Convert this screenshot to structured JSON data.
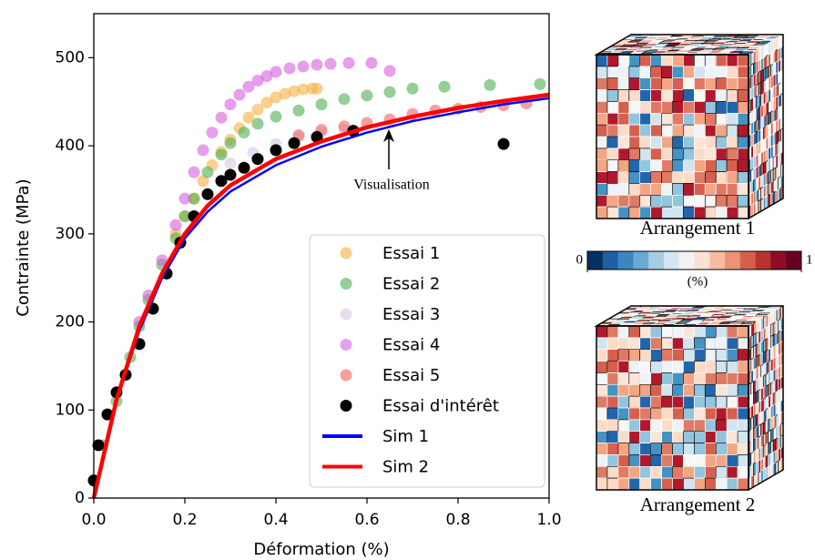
{
  "chart_data": {
    "type": "scatter",
    "xlabel": "Déformation (%)",
    "ylabel": "Contrainte (MPa)",
    "xlim": [
      0,
      1
    ],
    "ylim": [
      0,
      550
    ],
    "xticks": [
      {
        "value": 0,
        "label": "0.0"
      },
      {
        "value": 0.2,
        "label": "0.2"
      },
      {
        "value": 0.4,
        "label": "0.4"
      },
      {
        "value": 0.6,
        "label": "0.6"
      },
      {
        "value": 0.8,
        "label": "0.8"
      },
      {
        "value": 1,
        "label": "1.0"
      }
    ],
    "yticks": [
      0,
      100,
      200,
      300,
      400,
      500
    ],
    "annotation": "Visualisation",
    "legend": "lower right",
    "series": [
      {
        "name": "Essai 1",
        "type": "scatter",
        "color": "#f5b041",
        "x": [
          0.18,
          0.2,
          0.22,
          0.24,
          0.26,
          0.28,
          0.3,
          0.32,
          0.34,
          0.36,
          0.38,
          0.4,
          0.42,
          0.44,
          0.46,
          0.48,
          0.49
        ],
        "values": [
          300,
          320,
          340,
          360,
          378,
          393,
          407,
          420,
          432,
          441,
          449,
          455,
          459,
          462,
          464,
          465,
          465
        ]
      },
      {
        "name": "Essai 2",
        "type": "scatter",
        "color": "#4caf50",
        "x": [
          0.02,
          0.05,
          0.08,
          0.1,
          0.12,
          0.15,
          0.18,
          0.2,
          0.22,
          0.25,
          0.28,
          0.3,
          0.33,
          0.36,
          0.4,
          0.45,
          0.5,
          0.55,
          0.6,
          0.65,
          0.7,
          0.77,
          0.87,
          0.98
        ],
        "values": [
          60,
          110,
          160,
          195,
          225,
          265,
          295,
          320,
          340,
          370,
          390,
          403,
          415,
          425,
          433,
          440,
          447,
          453,
          457,
          461,
          465,
          467,
          469,
          470
        ]
      },
      {
        "name": "Essai 3",
        "type": "scatter",
        "color": "#d7c6e6",
        "x": [
          0.3,
          0.35,
          0.4,
          0.45,
          0.5,
          0.55
        ],
        "values": [
          380,
          392,
          402,
          410,
          415,
          418
        ]
      },
      {
        "name": "Essai 4",
        "type": "scatter",
        "color": "#d55fdc",
        "x": [
          0.1,
          0.12,
          0.15,
          0.18,
          0.2,
          0.22,
          0.24,
          0.26,
          0.28,
          0.3,
          0.32,
          0.34,
          0.36,
          0.38,
          0.4,
          0.43,
          0.46,
          0.49,
          0.52,
          0.56,
          0.61,
          0.65
        ],
        "values": [
          200,
          230,
          270,
          310,
          340,
          370,
          395,
          415,
          432,
          447,
          458,
          467,
          474,
          479,
          484,
          488,
          490,
          492,
          493,
          494,
          494,
          485
        ]
      },
      {
        "name": "Essai 5",
        "type": "scatter",
        "color": "#f06060",
        "x": [
          0.45,
          0.5,
          0.55,
          0.6,
          0.65,
          0.7,
          0.75,
          0.8,
          0.85,
          0.9,
          0.95
        ],
        "values": [
          412,
          418,
          422,
          426,
          430,
          436,
          440,
          442,
          444,
          446,
          448
        ]
      },
      {
        "name": "Essai d'intérêt",
        "type": "scatter",
        "color": "#000000",
        "x": [
          0.0,
          0.01,
          0.03,
          0.05,
          0.07,
          0.1,
          0.13,
          0.16,
          0.19,
          0.22,
          0.25,
          0.28,
          0.3,
          0.33,
          0.36,
          0.4,
          0.44,
          0.49,
          0.57,
          0.9
        ],
        "values": [
          20,
          60,
          95,
          120,
          140,
          175,
          215,
          255,
          290,
          320,
          345,
          360,
          367,
          375,
          385,
          395,
          403,
          410,
          417,
          402
        ]
      },
      {
        "name": "Sim 1",
        "type": "line",
        "color": "#0000ff",
        "x": [
          0,
          0.05,
          0.1,
          0.15,
          0.2,
          0.25,
          0.3,
          0.4,
          0.5,
          0.6,
          0.7,
          0.8,
          0.9,
          1.0
        ],
        "values": [
          0,
          110,
          190,
          250,
          295,
          325,
          348,
          378,
          399,
          415,
          428,
          438,
          447,
          454
        ]
      },
      {
        "name": "Sim 2",
        "type": "line",
        "color": "#ff0000",
        "x": [
          0,
          0.05,
          0.1,
          0.15,
          0.2,
          0.25,
          0.3,
          0.4,
          0.5,
          0.6,
          0.7,
          0.8,
          0.9,
          1.0
        ],
        "values": [
          0,
          112,
          195,
          255,
          300,
          332,
          355,
          385,
          405,
          421,
          433,
          443,
          451,
          458
        ]
      }
    ]
  },
  "side_panel": {
    "arrangement_1": "Arrangement 1",
    "arrangement_2": "Arrangement 2",
    "colorbar": {
      "ticks": [
        0,
        1
      ],
      "label": "(%)"
    }
  }
}
